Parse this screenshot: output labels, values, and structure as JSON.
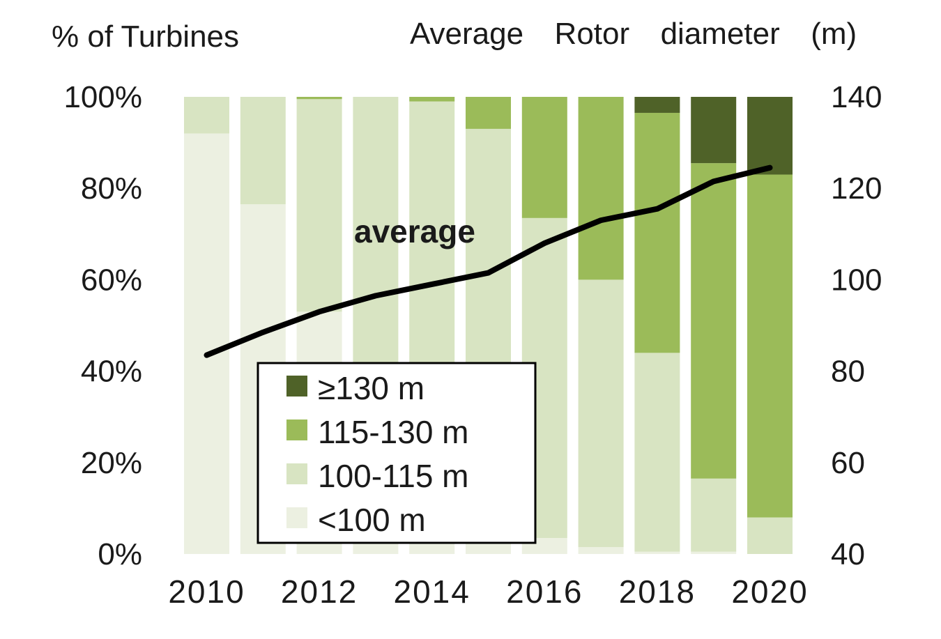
{
  "chart_data": {
    "type": "bar",
    "stacked": true,
    "y_left_label": "% of Turbines",
    "y_right_label": "Average  Rotor  diameter  (m)",
    "x": [
      2010,
      2011,
      2012,
      2013,
      2014,
      2015,
      2016,
      2017,
      2018,
      2019,
      2020
    ],
    "x_tick_labels": [
      "2010",
      "2012",
      "2014",
      "2016",
      "2018",
      "2020"
    ],
    "y_left_ticks": [
      "0%",
      "20%",
      "40%",
      "60%",
      "80%",
      "100%"
    ],
    "y_left_range": [
      0,
      100
    ],
    "y_right_ticks": [
      "40",
      "60",
      "80",
      "100",
      "120",
      "140"
    ],
    "y_right_range": [
      40,
      140
    ],
    "series": [
      {
        "name": "<100 m",
        "color": "#ecf0e1",
        "values": [
          92,
          76.5,
          53,
          26.5,
          20.5,
          13.5,
          3.5,
          1.5,
          0.5,
          0.5,
          0
        ]
      },
      {
        "name": "100-115 m",
        "color": "#d8e4c2",
        "values": [
          8,
          23.5,
          46.5,
          73.5,
          78.5,
          79.5,
          70,
          58.5,
          43.5,
          16,
          8
        ]
      },
      {
        "name": "115-130 m",
        "color": "#9bbb59",
        "values": [
          0,
          0,
          0.5,
          0,
          1,
          7,
          26.5,
          40,
          52.5,
          69,
          75
        ]
      },
      {
        "name": "≥130 m",
        "color": "#4f6228",
        "values": [
          0,
          0,
          0,
          0,
          0,
          0,
          0,
          0,
          3.5,
          14.5,
          17
        ]
      }
    ],
    "line": {
      "label": "average",
      "axis": "right",
      "color": "#000000",
      "values": [
        83.5,
        88.5,
        93,
        96.5,
        99,
        101.5,
        108,
        113,
        115.5,
        121.5,
        124.5
      ]
    },
    "legend": {
      "placement": "bottom-center",
      "entries": [
        "≥130 m",
        "115-130 m",
        "100-115 m",
        "<100 m"
      ]
    },
    "grid": false
  }
}
